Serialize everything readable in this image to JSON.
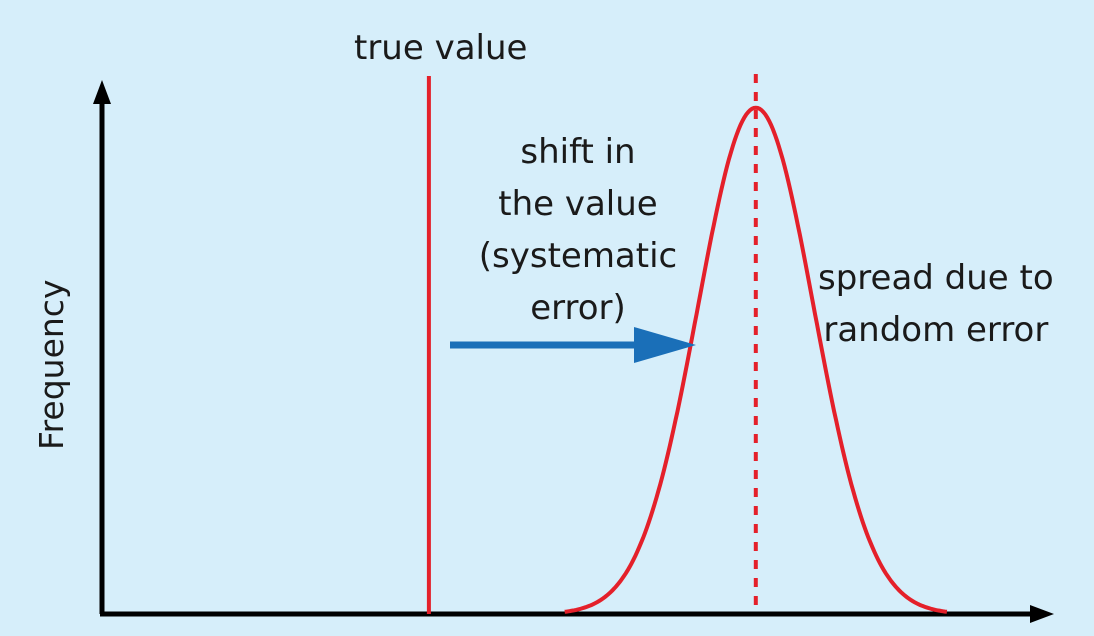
{
  "diagram": {
    "y_axis_label": "Frequency",
    "true_value_label": "true value",
    "shift_label_lines": [
      "shift in",
      "the value",
      "(systematic",
      "error)"
    ],
    "spread_label_lines": [
      "spread due to",
      "random error"
    ]
  },
  "chart_data": {
    "type": "line",
    "title": "",
    "xlabel": "",
    "ylabel": "Frequency",
    "true_value_x": 0.35,
    "distribution_mean_x": 0.7,
    "distribution_sigma": 0.062,
    "peak_relative_frequency": 0.97,
    "annotations": [
      "true value",
      "shift in the value (systematic error)",
      "spread due to random error"
    ]
  },
  "colors": {
    "background": "#d6eefa",
    "axis": "#000000",
    "curve": "#e4202a",
    "true_value_line": "#e4202a",
    "arrow": "#1a6fb8"
  }
}
